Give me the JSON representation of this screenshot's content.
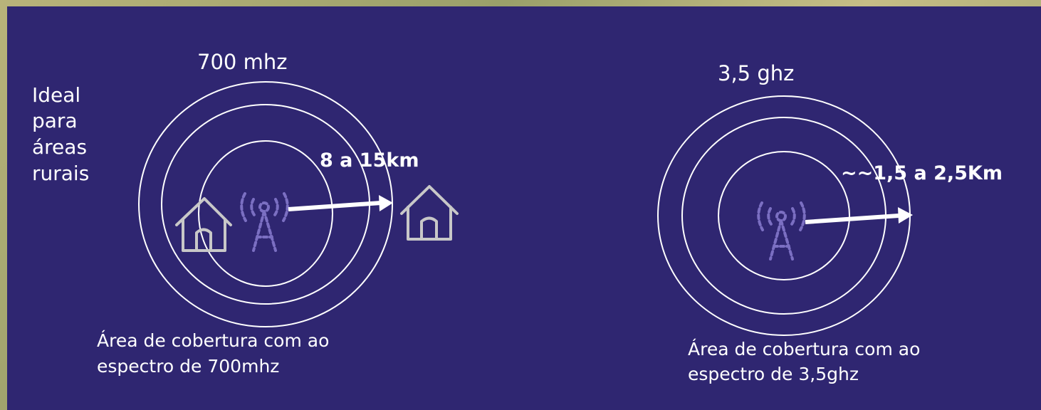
{
  "left": {
    "freq": "700 mhz",
    "side_note": [
      "Ideal",
      "para",
      "áreas",
      "rurais"
    ],
    "range": "8 a 15km",
    "caption": [
      "Área de cobertura com ao",
      "espectro de 700mhz"
    ],
    "icons": [
      "house-icon",
      "antenna-icon",
      "house-icon"
    ]
  },
  "right": {
    "freq": "3,5 ghz",
    "range": "~~1,5 a 2,5Km",
    "caption": [
      "Área de cobertura com ao",
      "espectro de 3,5ghz"
    ],
    "icons": [
      "antenna-icon"
    ]
  },
  "colors": {
    "panel": "#2f2671",
    "rings": "#ffffff",
    "antenna": "#7b6fc2",
    "house": "#c8c8c8",
    "text": "#ffffff"
  }
}
